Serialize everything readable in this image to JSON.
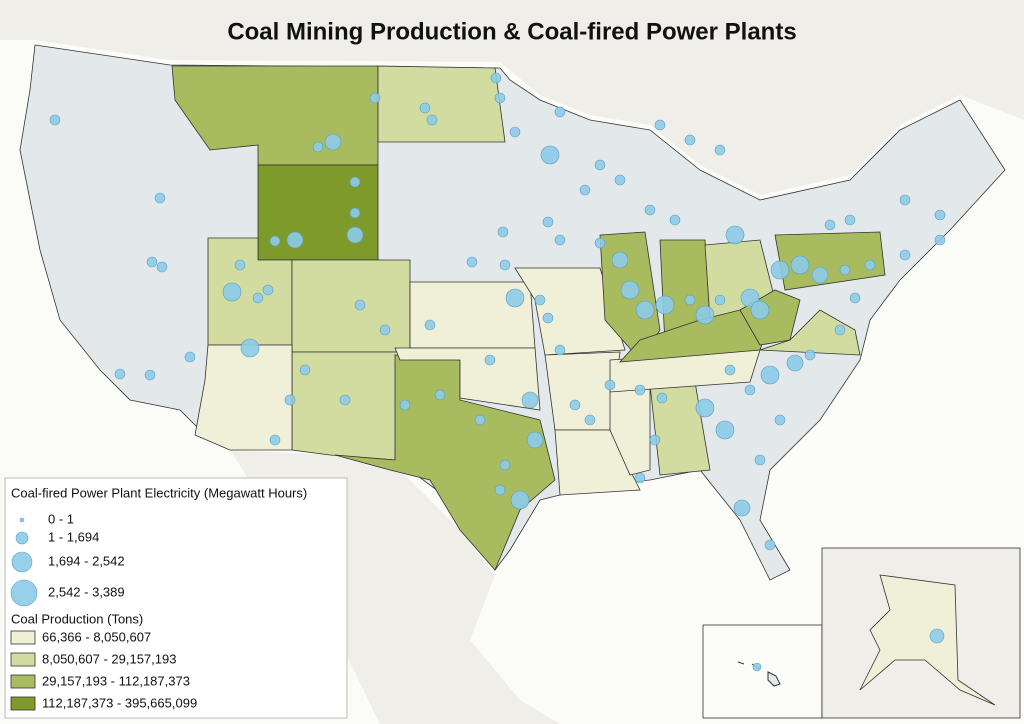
{
  "title": "Coal Mining Production & Coal-fired Power Plants",
  "legend": {
    "plants": {
      "title": "Coal-fired Power Plant Electricity (Megawatt Hours)",
      "items": [
        "0 - 1",
        "1 - 1,694",
        "1,694 - 2,542",
        "2,542 - 3,389"
      ]
    },
    "production": {
      "title": "Coal Production (Tons)",
      "items": [
        "66,366 - 8,050,607",
        "8,050,607 - 29,157,193",
        "29,157,193 - 112,187,373",
        "112,187,373 - 395,665,099"
      ]
    }
  }
}
